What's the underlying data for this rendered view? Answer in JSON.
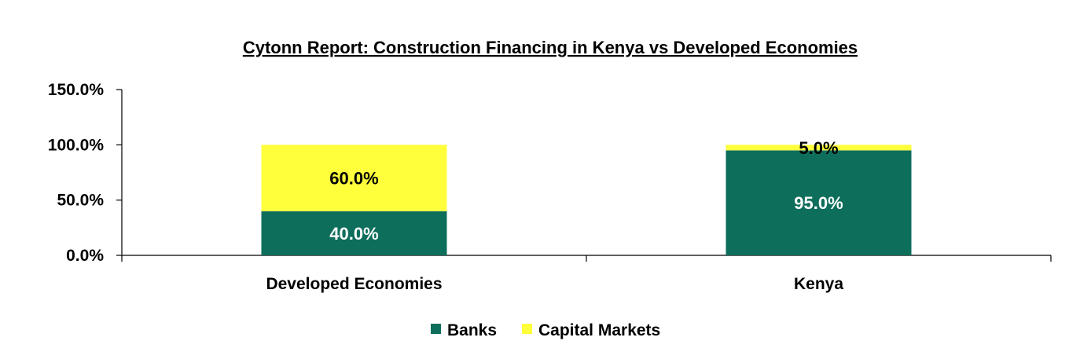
{
  "chart_data": {
    "type": "bar",
    "stacked": true,
    "title": "Cytonn Report: Construction Financing in Kenya vs Developed Economies",
    "categories": [
      "Developed Economies",
      "Kenya"
    ],
    "series": [
      {
        "name": "Banks",
        "values": [
          40.0,
          95.0
        ],
        "labels": [
          "40.0%",
          "95.0%"
        ],
        "color": "#0e6e5c",
        "label_color": "#ffffff"
      },
      {
        "name": "Capital Markets",
        "values": [
          60.0,
          5.0
        ],
        "labels": [
          "60.0%",
          "5.0%"
        ],
        "color": "#ffff3c",
        "label_color": "#000000"
      }
    ],
    "ylim": [
      0,
      150
    ],
    "yticks": [
      0,
      50,
      100,
      150
    ],
    "ytick_labels": [
      "0.0%",
      "50.0%",
      "100.0%",
      "150.0%"
    ],
    "xlabel": "",
    "ylabel": "",
    "grid": false,
    "legend": "bottom"
  }
}
